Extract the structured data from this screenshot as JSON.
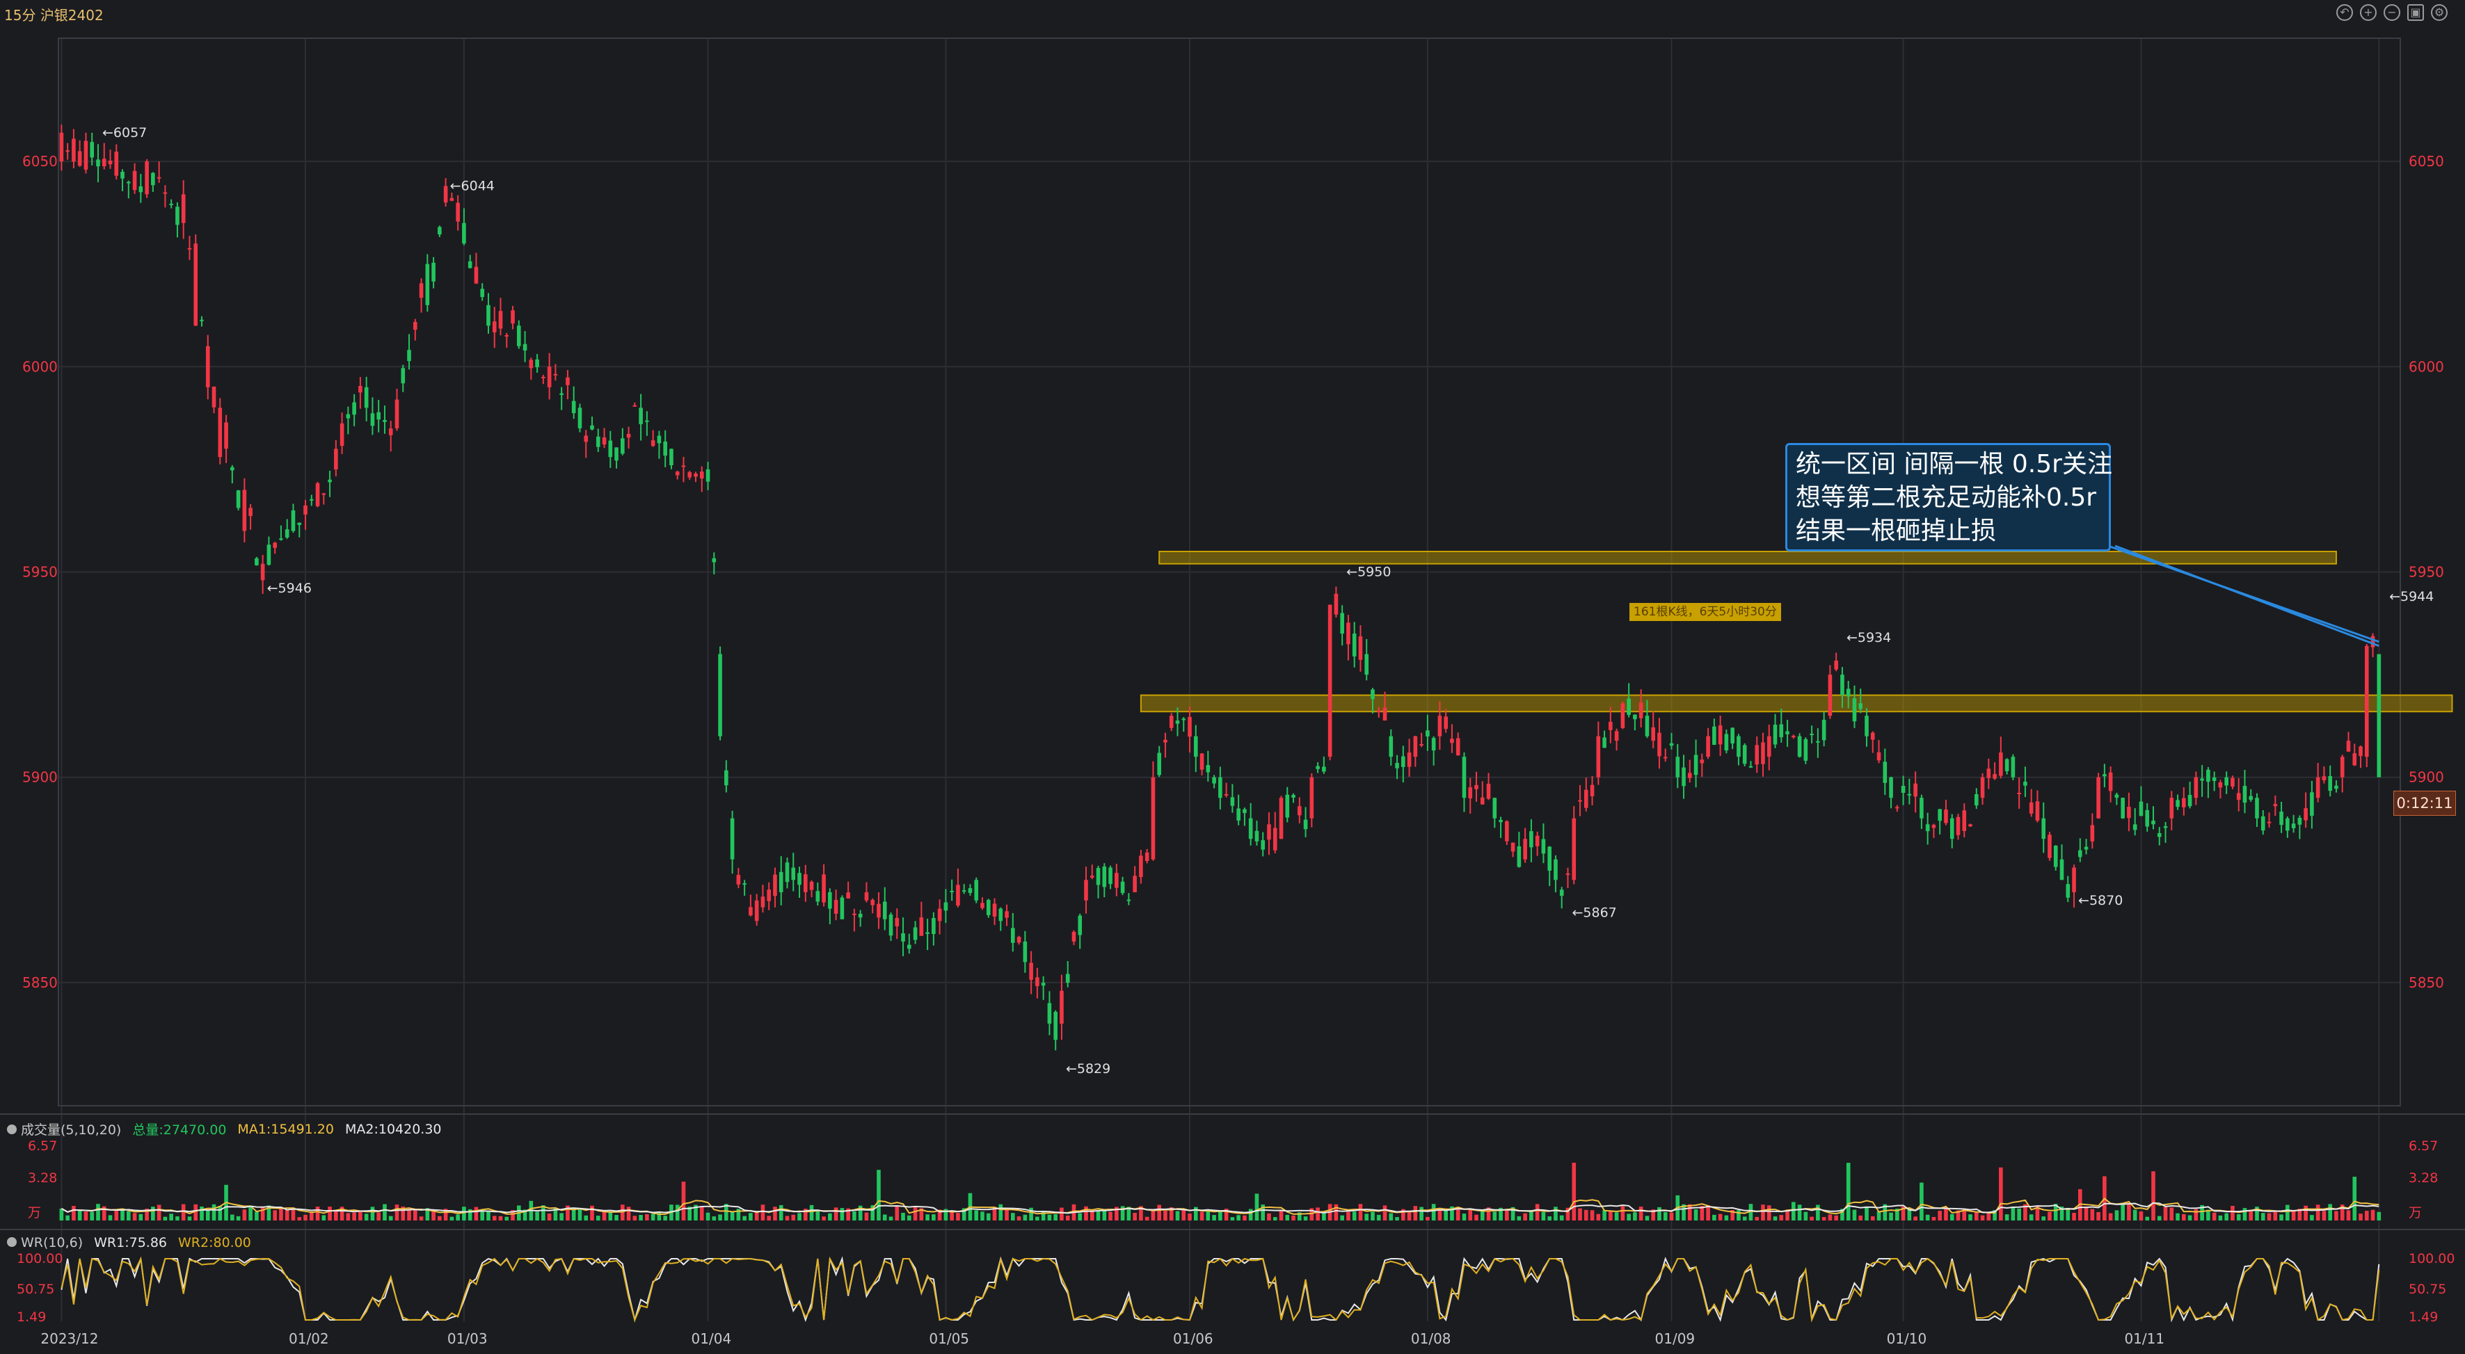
{
  "header": {
    "period": "15分",
    "symbol": "沪银2402"
  },
  "colors": {
    "up": "#f23645",
    "down": "#22c55e",
    "ma1": "#f0c040",
    "ma2": "#e8e8e8",
    "wr1": "#e8e8e8",
    "wr2": "#e0b020",
    "band": "#c8a000",
    "callout_border": "#2a8ae0"
  },
  "annotation": {
    "lines": [
      "统一区间 间隔一根 0.5r关注",
      "想等第二根充足动能补0.5r",
      "结果一根砸掉止损"
    ],
    "band_label": "161根K线，6天5小时30分",
    "timer": "0:12:11"
  },
  "volume_panel": {
    "title": "成交量(5,10,20)",
    "total_label": "总量:27470.00",
    "ma1_label": "MA1:15491.20",
    "ma2_label": "MA2:10420.30",
    "scale": [
      "6.57",
      "3.28",
      "万"
    ]
  },
  "wr_panel": {
    "title": "WR(10,6)",
    "wr1_label": "WR1:75.86",
    "wr2_label": "WR2:80.00",
    "scale": [
      "100.00",
      "50.75",
      "1.49"
    ]
  },
  "chart_data": {
    "type": "candlestick",
    "ylim": [
      5820,
      6080
    ],
    "price_ticks": [
      "6050",
      "6000",
      "5950",
      "5900",
      "5850"
    ],
    "x_labels": [
      "2023/12",
      "01/02",
      "01/03",
      "01/04",
      "01/05",
      "01/06",
      "01/08",
      "01/09",
      "01/10",
      "01/11"
    ],
    "price_marks": [
      {
        "text": "←6057",
        "x_index": 6,
        "value": 6057
      },
      {
        "text": "←6044",
        "x_index": 63,
        "value": 6044
      },
      {
        "text": "←5946",
        "x_index": 33,
        "value": 5946
      },
      {
        "text": "←5829",
        "x_index": 164,
        "value": 5829
      },
      {
        "text": "←5950",
        "x_index": 210,
        "value": 5950
      },
      {
        "text": "←5867",
        "x_index": 247,
        "value": 5867
      },
      {
        "text": "←5934",
        "x_index": 292,
        "value": 5934
      },
      {
        "text": "←5870",
        "x_index": 330,
        "value": 5870
      },
      {
        "text": "←5944",
        "x_index": 381,
        "value": 5944
      }
    ],
    "bands": [
      {
        "y1": 5952,
        "y2": 5955,
        "x_from": 180,
        "x_to": 373
      },
      {
        "y1": 5916,
        "y2": 5920,
        "x_from": 177,
        "x_to": 392
      }
    ],
    "ohlc_anchor": [
      [
        0,
        6050,
        6057
      ],
      [
        4,
        6048,
        6055
      ],
      [
        14,
        6042,
        6050
      ],
      [
        20,
        6035,
        6042
      ],
      [
        22,
        6010,
        6030
      ],
      [
        24,
        5995,
        6005
      ],
      [
        26,
        5978,
        5990
      ],
      [
        30,
        5960,
        5970
      ],
      [
        33,
        5948,
        5952
      ],
      [
        38,
        5965,
        5960
      ],
      [
        45,
        5975,
        5980
      ],
      [
        50,
        5995,
        5990
      ],
      [
        55,
        5985,
        5992
      ],
      [
        60,
        6025,
        6015
      ],
      [
        63,
        6040,
        6044
      ],
      [
        66,
        6035,
        6030
      ],
      [
        70,
        6015,
        6010
      ],
      [
        75,
        6010,
        6005
      ],
      [
        80,
        5995,
        6000
      ],
      [
        85,
        5990,
        5985
      ],
      [
        90,
        5982,
        5978
      ],
      [
        95,
        5990,
        5986
      ],
      [
        100,
        5980,
        5976
      ],
      [
        106,
        5975,
        5972
      ],
      [
        108,
        5930,
        5910
      ],
      [
        110,
        5890,
        5880
      ],
      [
        114,
        5865,
        5870
      ],
      [
        120,
        5878,
        5875
      ],
      [
        126,
        5872,
        5868
      ],
      [
        132,
        5870,
        5872
      ],
      [
        138,
        5862,
        5860
      ],
      [
        144,
        5865,
        5868
      ],
      [
        150,
        5875,
        5870
      ],
      [
        154,
        5868,
        5865
      ],
      [
        158,
        5860,
        5855
      ],
      [
        162,
        5845,
        5840
      ],
      [
        164,
        5840,
        5848
      ],
      [
        168,
        5870,
        5875
      ],
      [
        172,
        5878,
        5874
      ],
      [
        176,
        5872,
        5876
      ],
      [
        179,
        5880,
        5900
      ],
      [
        182,
        5912,
        5915
      ],
      [
        186,
        5910,
        5905
      ],
      [
        190,
        5900,
        5895
      ],
      [
        195,
        5890,
        5885
      ],
      [
        200,
        5885,
        5895
      ],
      [
        205,
        5890,
        5900
      ],
      [
        208,
        5905,
        5942
      ],
      [
        210,
        5940,
        5935
      ],
      [
        214,
        5930,
        5925
      ],
      [
        218,
        5910,
        5905
      ],
      [
        222,
        5905,
        5910
      ],
      [
        226,
        5910,
        5915
      ],
      [
        230,
        5905,
        5895
      ],
      [
        235,
        5895,
        5890
      ],
      [
        240,
        5880,
        5885
      ],
      [
        245,
        5880,
        5875
      ],
      [
        248,
        5875,
        5890
      ],
      [
        252,
        5900,
        5910
      ],
      [
        256,
        5912,
        5918
      ],
      [
        260,
        5915,
        5910
      ],
      [
        265,
        5905,
        5900
      ],
      [
        270,
        5905,
        5910
      ],
      [
        275,
        5910,
        5905
      ],
      [
        280,
        5905,
        5910
      ],
      [
        285,
        5910,
        5905
      ],
      [
        290,
        5915,
        5925
      ],
      [
        292,
        5925,
        5920
      ],
      [
        296,
        5915,
        5910
      ],
      [
        300,
        5900,
        5895
      ],
      [
        305,
        5895,
        5890
      ],
      [
        310,
        5890,
        5885
      ],
      [
        315,
        5895,
        5900
      ],
      [
        320,
        5905,
        5900
      ],
      [
        325,
        5890,
        5885
      ],
      [
        328,
        5880,
        5875
      ],
      [
        330,
        5872,
        5878
      ],
      [
        334,
        5890,
        5900
      ],
      [
        338,
        5895,
        5890
      ],
      [
        342,
        5892,
        5888
      ],
      [
        346,
        5890,
        5895
      ],
      [
        350,
        5895,
        5900
      ],
      [
        355,
        5900,
        5898
      ],
      [
        360,
        5895,
        5890
      ],
      [
        365,
        5890,
        5887
      ],
      [
        370,
        5895,
        5900
      ],
      [
        374,
        5900,
        5905
      ],
      [
        378,
        5905,
        5932
      ],
      [
        380,
        5930,
        5900
      ]
    ],
    "volume_ylim": [
      0,
      6.57
    ],
    "wr_ylim": [
      1.49,
      100
    ]
  }
}
